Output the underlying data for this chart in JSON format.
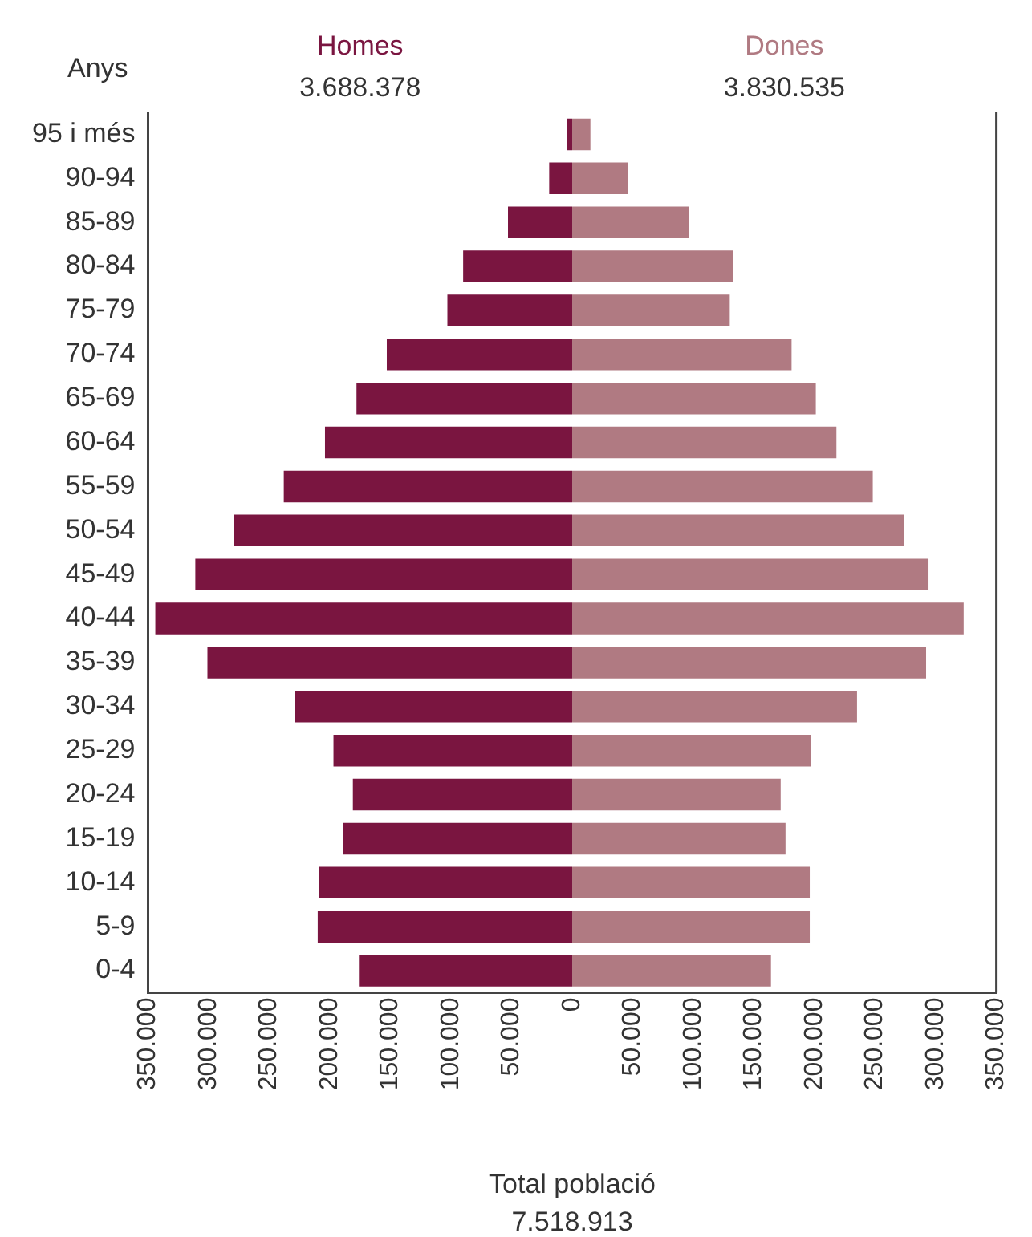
{
  "chart_data": {
    "type": "bar",
    "orientation": "horizontal",
    "stacked": true,
    "ylabel": "Anys",
    "xlabel": "Total població",
    "annotations": [
      "3.688.378",
      "3.830.535",
      "7.518.913"
    ],
    "categories": [
      "95 i més",
      "90-94",
      "85-89",
      "80-84",
      "75-79",
      "70-74",
      "65-69",
      "60-64",
      "55-59",
      "50-54",
      "45-49",
      "40-44",
      "35-39",
      "30-34",
      "25-29",
      "20-24",
      "15-19",
      "10-14",
      "5-9",
      "0-4"
    ],
    "series": [
      {
        "name": "Homes",
        "color": "#7a1540",
        "values": [
          -4000,
          -19000,
          -53000,
          -90000,
          -103000,
          -153000,
          -178000,
          -204000,
          -238000,
          -279000,
          -311000,
          -344000,
          -301000,
          -229000,
          -197000,
          -181000,
          -189000,
          -209000,
          -210000,
          -176000
        ]
      },
      {
        "name": "Dones",
        "color": "#b07a82",
        "values": [
          15000,
          46000,
          96000,
          133000,
          130000,
          181000,
          201000,
          218000,
          248000,
          274000,
          294000,
          323000,
          292000,
          235000,
          197000,
          172000,
          176000,
          196000,
          196000,
          164000
        ]
      }
    ],
    "xlim": [
      -350000,
      350000
    ],
    "xticks": [
      {
        "value": -350000,
        "label": "350.000"
      },
      {
        "value": -300000,
        "label": "300.000"
      },
      {
        "value": -250000,
        "label": "250.000"
      },
      {
        "value": -200000,
        "label": "200.000"
      },
      {
        "value": -150000,
        "label": "150.000"
      },
      {
        "value": -100000,
        "label": "100.000"
      },
      {
        "value": -50000,
        "label": "50.000"
      },
      0,
      {
        "value": 50000,
        "label": "50.000"
      },
      {
        "value": 100000,
        "label": "100.000"
      },
      {
        "value": 150000,
        "label": "150.000"
      },
      {
        "value": 200000,
        "label": "200.000"
      },
      {
        "value": 250000,
        "label": "250.000"
      },
      {
        "value": 300000,
        "label": "300.000"
      },
      {
        "value": 350000,
        "label": "350.000"
      }
    ],
    "grid": false,
    "legend": false
  }
}
